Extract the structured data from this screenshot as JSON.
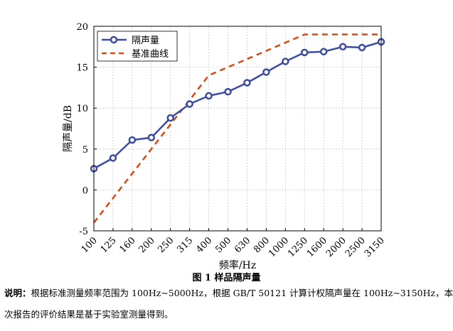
{
  "chart_data": {
    "type": "line",
    "xlabel": "频率/Hz",
    "ylabel": "隔声量/dB",
    "categories": [
      "100",
      "125",
      "160",
      "200",
      "250",
      "315",
      "400",
      "500",
      "630",
      "800",
      "1000",
      "1250",
      "1600",
      "2000",
      "2500",
      "3150"
    ],
    "ylim": [
      -5,
      20
    ],
    "yticks": [
      -5,
      0,
      5,
      10,
      15,
      20
    ],
    "grid": true,
    "legend_position": "top-left",
    "series": [
      {
        "name": "隔声量",
        "style": "solid-marker",
        "color": "#3b4ba0",
        "values": [
          2.6,
          3.9,
          6.1,
          6.4,
          8.8,
          10.5,
          11.5,
          12.0,
          13.1,
          14.4,
          15.7,
          16.8,
          16.9,
          17.5,
          17.4,
          18.1
        ]
      },
      {
        "name": "基准曲线",
        "style": "dashed",
        "color": "#d9480f",
        "values": [
          -4.0,
          -1.0,
          2.0,
          5.0,
          8.0,
          11.0,
          14.0,
          15.0,
          16.0,
          17.0,
          18.0,
          19.0,
          19.0,
          19.0,
          19.0,
          19.0
        ]
      }
    ]
  },
  "caption": "图 1  样品隔声量",
  "note": {
    "label": "说明：",
    "line1": "根据标准测量频率范围为 100Hz~5000Hz，根据 GB/T 50121 计算计权隔声量在 100Hz~3150Hz，本",
    "line2": "次报告的评价结果是基于实验室测量得到。"
  }
}
